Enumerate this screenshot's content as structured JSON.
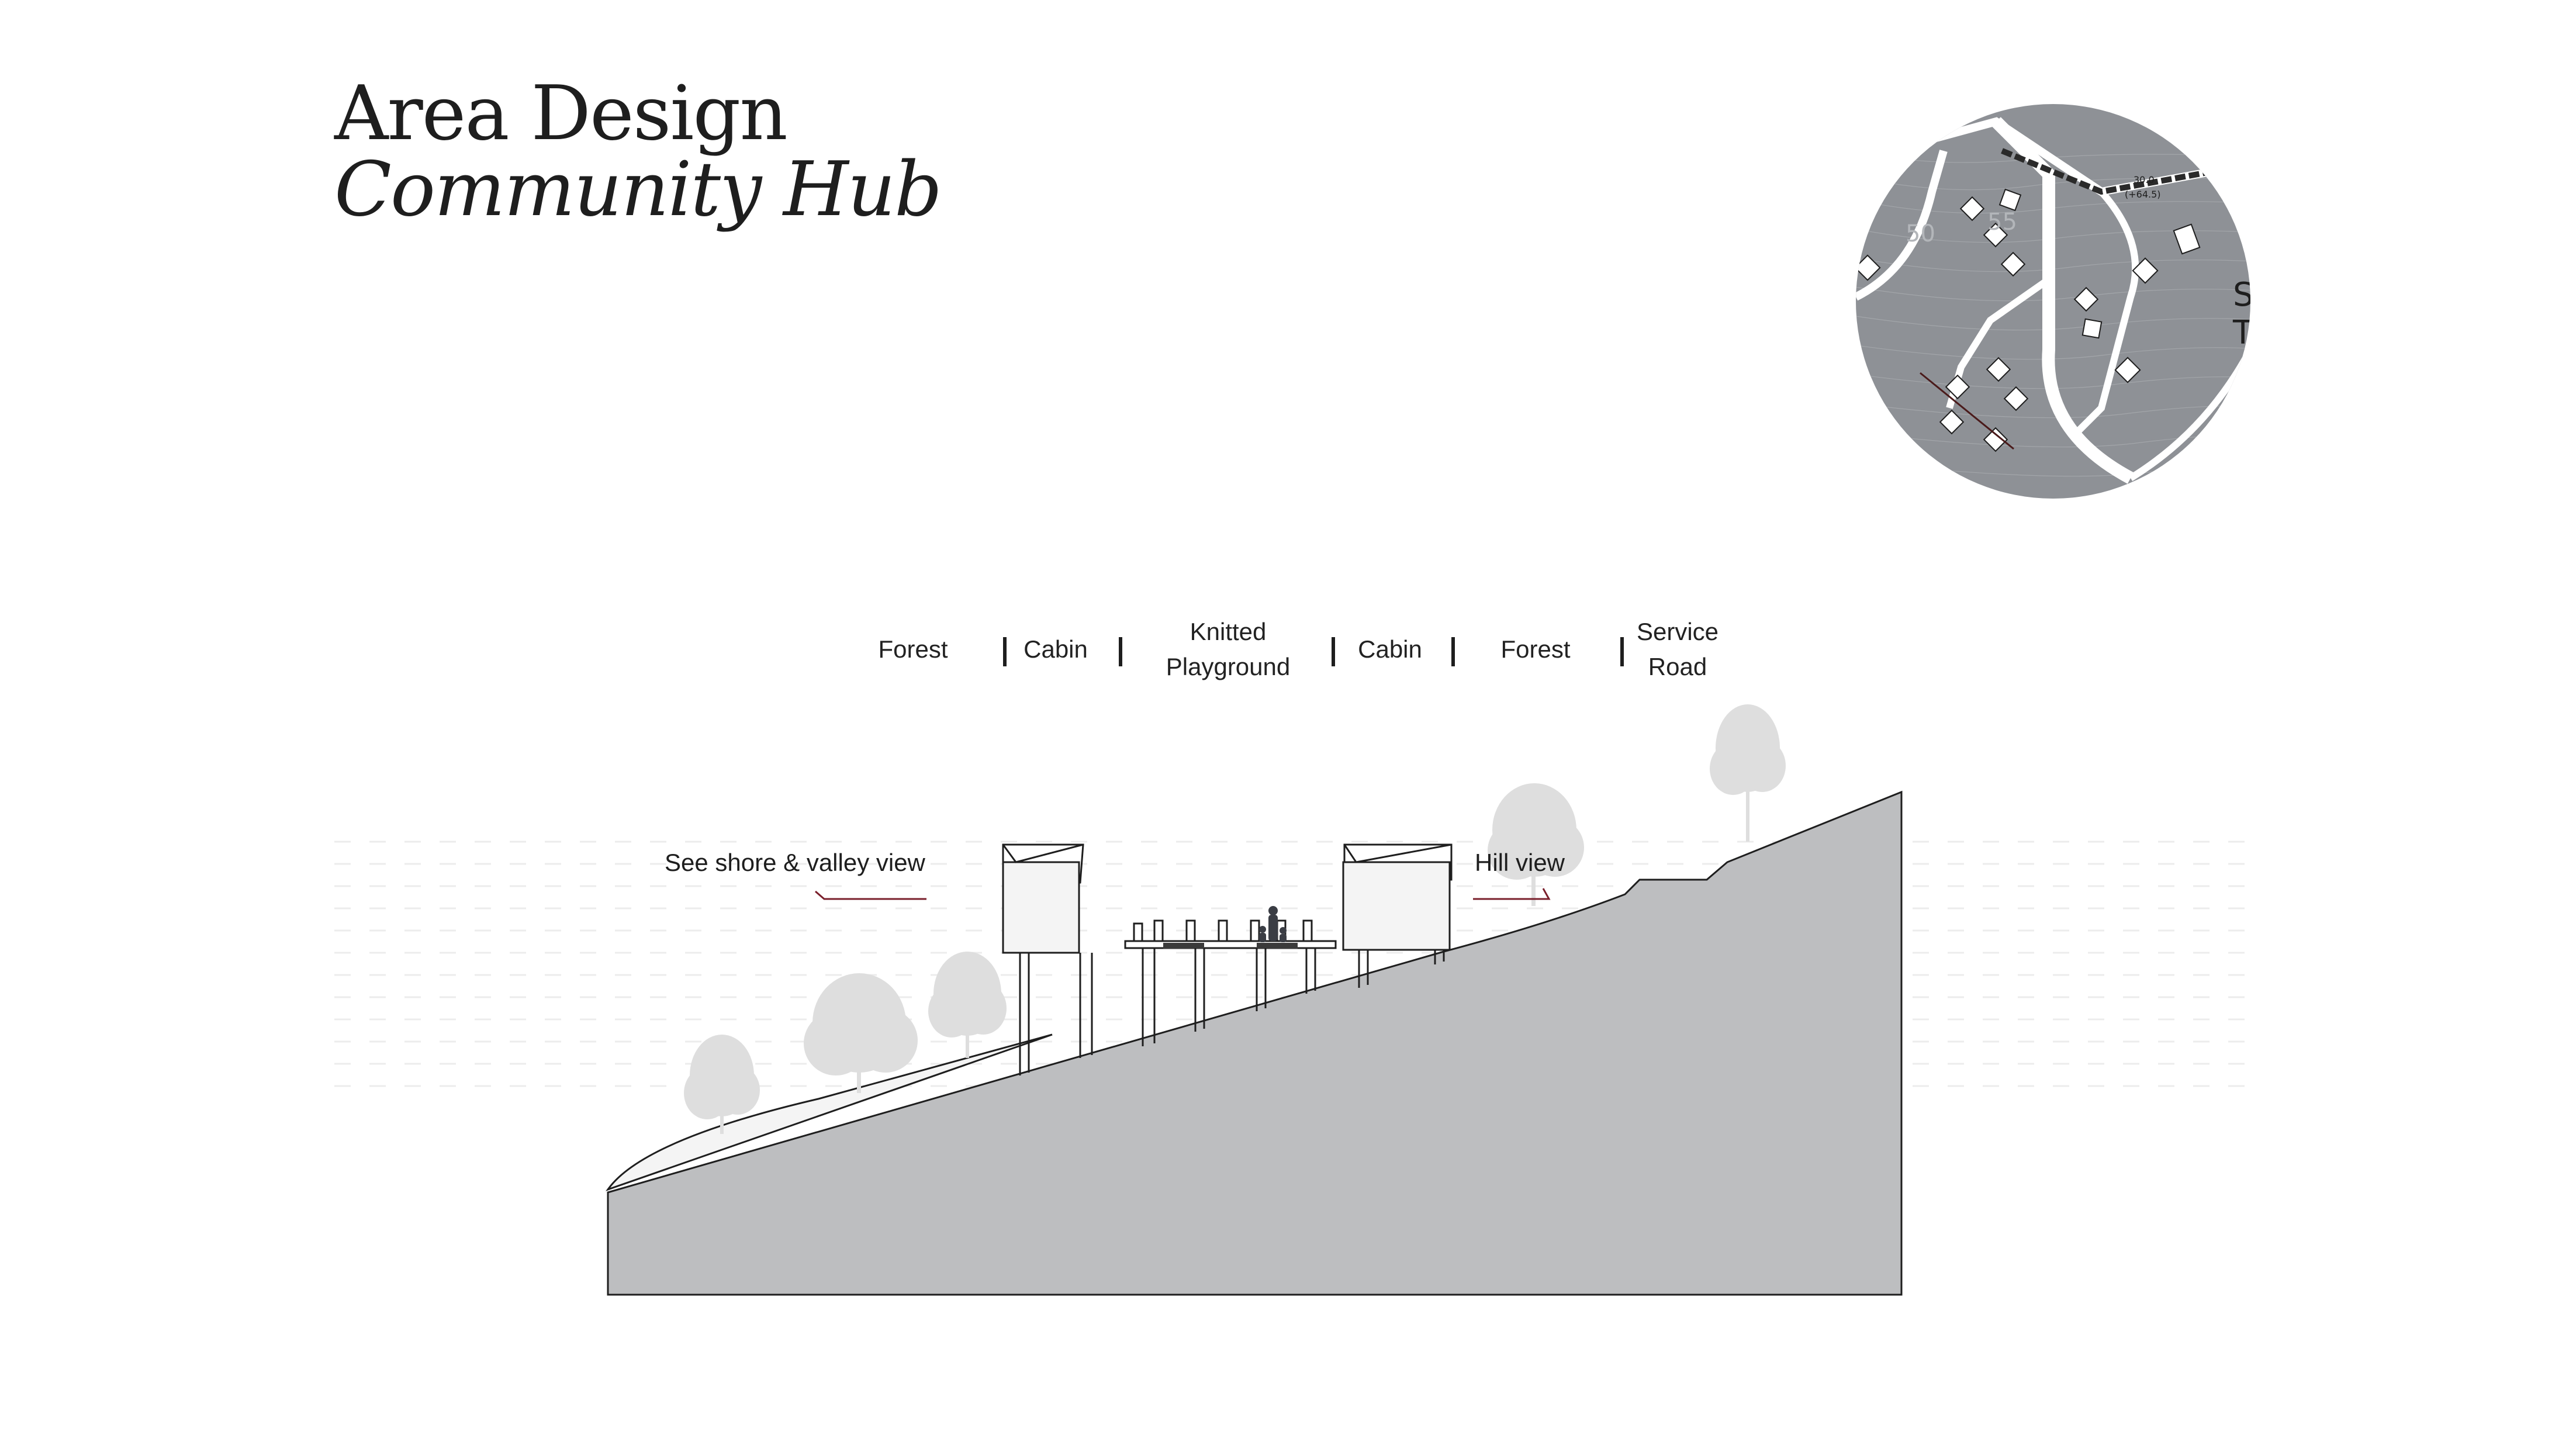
{
  "title": {
    "line1": "Area Design",
    "line2": "Community Hub"
  },
  "site_map": {
    "contour_labels": [
      "50",
      "55"
    ],
    "road_labels": [
      "30.0",
      "(+64.5)"
    ],
    "edge_letters": [
      "S",
      "T"
    ],
    "colors": {
      "terrain": "#8e9196",
      "road": "#ffffff",
      "building_fill": "#ffffff"
    }
  },
  "zones": [
    {
      "label": "Forest"
    },
    {
      "label": "Cabin"
    },
    {
      "label": "Knitted\nPlayground"
    },
    {
      "label": "Cabin"
    },
    {
      "label": "Forest"
    },
    {
      "label": "Service\nRoad"
    }
  ],
  "annotations": {
    "shore_view": "See shore & valley view",
    "hill_view": "Hill view"
  },
  "colors": {
    "ground": "#bdbec0",
    "tree": "#dedede",
    "pointer_line": "#7a1f2b",
    "outline": "#1e1e1e"
  }
}
